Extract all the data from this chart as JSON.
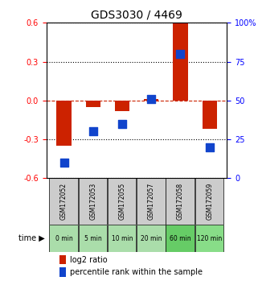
{
  "title": "GDS3030 / 4469",
  "samples": [
    "GSM172052",
    "GSM172053",
    "GSM172055",
    "GSM172057",
    "GSM172058",
    "GSM172059"
  ],
  "time_labels": [
    "0 min",
    "5 min",
    "10 min",
    "20 min",
    "60 min",
    "120 min"
  ],
  "log2_ratio": [
    -0.35,
    -0.05,
    -0.08,
    0.01,
    0.6,
    -0.22
  ],
  "percentile_rank": [
    10,
    30,
    35,
    51,
    80,
    20
  ],
  "ylim_left": [
    -0.6,
    0.6
  ],
  "ylim_right": [
    0,
    100
  ],
  "yticks_left": [
    -0.6,
    -0.3,
    0.0,
    0.3,
    0.6
  ],
  "yticks_right": [
    0,
    25,
    50,
    75,
    100
  ],
  "ytick_labels_right": [
    "0",
    "25",
    "50",
    "75",
    "100%"
  ],
  "bar_color": "#CC2200",
  "dot_color": "#1144CC",
  "grid_color": "#000000",
  "hline_color": "#CC2200",
  "bg_color_gsm": "#CCCCCC",
  "bg_color_time_light": "#AADDAA",
  "bg_color_time_dark": "#66CC66",
  "time_green_shades": [
    "#AADDAA",
    "#AADDAA",
    "#AADDAA",
    "#AADDAA",
    "#66CC66",
    "#88DD88"
  ],
  "bar_width": 0.5,
  "dot_size": 60
}
